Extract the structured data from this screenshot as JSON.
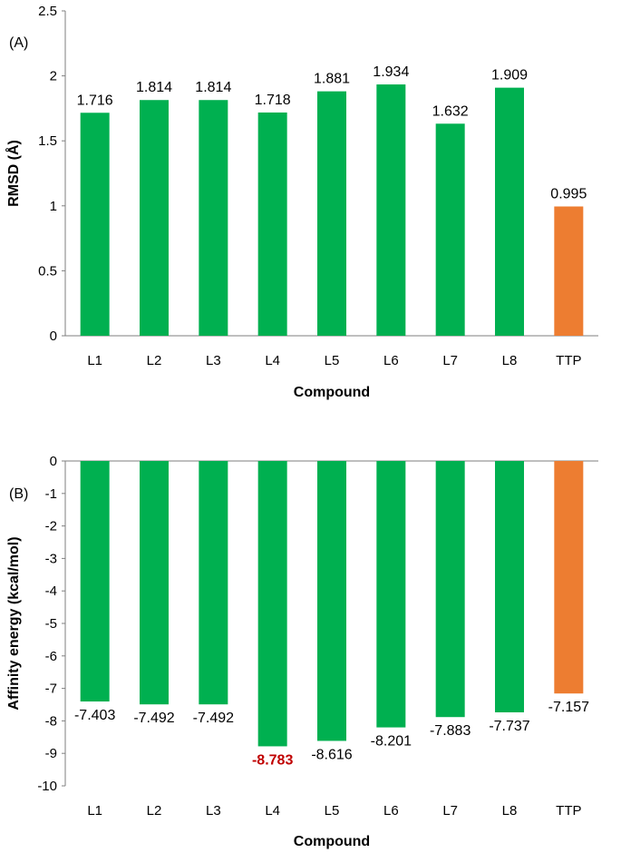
{
  "chart_data": [
    {
      "type": "bar",
      "panel_label": "(A)",
      "categories": [
        "L1",
        "L2",
        "L3",
        "L4",
        "L5",
        "L6",
        "L7",
        "L8",
        "TTP"
      ],
      "values": [
        1.716,
        1.814,
        1.814,
        1.718,
        1.881,
        1.934,
        1.632,
        1.909,
        0.995
      ],
      "data_labels": [
        "1.716",
        "1.814",
        "1.814",
        "1.718",
        "1.881",
        "1.934",
        "1.632",
        "1.909",
        "0.995"
      ],
      "colors": [
        "#00b050",
        "#00b050",
        "#00b050",
        "#00b050",
        "#00b050",
        "#00b050",
        "#00b050",
        "#00b050",
        "#ed7d31"
      ],
      "label_colors": [
        "#000000",
        "#000000",
        "#000000",
        "#000000",
        "#000000",
        "#000000",
        "#000000",
        "#000000",
        "#000000"
      ],
      "label_bold": [
        false,
        false,
        false,
        false,
        false,
        false,
        false,
        false,
        false
      ],
      "xlabel": "Compound",
      "ylabel": "RMSD (Å)",
      "ylim": [
        0,
        2.5
      ],
      "yticks": [
        "0",
        "0.5",
        "1",
        "1.5",
        "2",
        "2.5"
      ],
      "ytick_values": [
        0,
        0.5,
        1,
        1.5,
        2,
        2.5
      ],
      "grid": false
    },
    {
      "type": "bar",
      "panel_label": "(B)",
      "categories": [
        "L1",
        "L2",
        "L3",
        "L4",
        "L5",
        "L6",
        "L7",
        "L8",
        "TTP"
      ],
      "values": [
        -7.403,
        -7.492,
        -7.492,
        -8.783,
        -8.616,
        -8.201,
        -7.883,
        -7.737,
        -7.157
      ],
      "data_labels": [
        "-7.403",
        "-7.492",
        "-7.492",
        "-8.783",
        "-8.616",
        "-8.201",
        "-7.883",
        "-7.737",
        "-7.157"
      ],
      "colors": [
        "#00b050",
        "#00b050",
        "#00b050",
        "#00b050",
        "#00b050",
        "#00b050",
        "#00b050",
        "#00b050",
        "#ed7d31"
      ],
      "label_colors": [
        "#000000",
        "#000000",
        "#000000",
        "#c00000",
        "#000000",
        "#000000",
        "#000000",
        "#000000",
        "#000000"
      ],
      "label_bold": [
        false,
        false,
        false,
        true,
        false,
        false,
        false,
        false,
        false
      ],
      "xlabel": "Compound",
      "ylabel": "Affinity energy (kcal/mol)",
      "ylim": [
        -10,
        0
      ],
      "yticks": [
        "0",
        "-1",
        "-2",
        "-3",
        "-4",
        "-5",
        "-6",
        "-7",
        "-8",
        "-9",
        "-10"
      ],
      "ytick_values": [
        0,
        -1,
        -2,
        -3,
        -4,
        -5,
        -6,
        -7,
        -8,
        -9,
        -10
      ],
      "grid": false
    }
  ]
}
